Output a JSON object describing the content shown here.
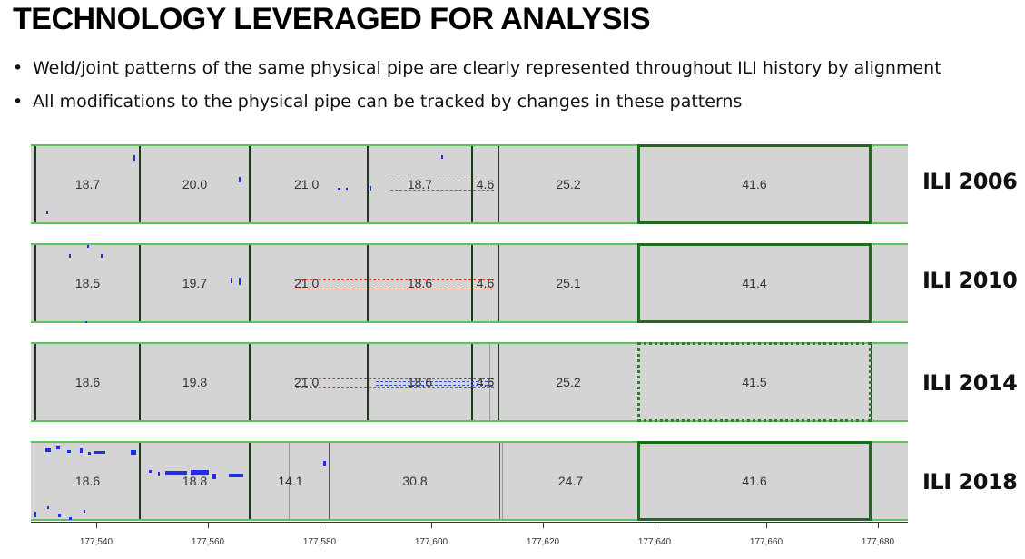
{
  "title": "TECHNOLOGY LEVERAGED FOR ANALYSIS",
  "bullets": [
    "Weld/joint patterns of the same physical pipe are clearly represented throughout ILI history by alignment",
    "All modifications to the physical pipe can be tracked by changes in these patterns"
  ],
  "tracks": [
    {
      "year": "ILI 2006",
      "joints": [
        "18.7",
        "20.0",
        "21.0",
        "18.7",
        "4.6",
        "25.2",
        "41.6"
      ]
    },
    {
      "year": "ILI 2010",
      "joints": [
        "18.5",
        "19.7",
        "21.0",
        "18.6",
        "4.6",
        "25.1",
        "41.4"
      ]
    },
    {
      "year": "ILI 2014",
      "joints": [
        "18.6",
        "19.8",
        "21.0",
        "18.6",
        "4.6",
        "25.2",
        "41.5"
      ]
    },
    {
      "year": "ILI 2018",
      "joints": [
        "18.6",
        "18.8",
        "14.1",
        "30.8",
        "24.7",
        "41.6"
      ]
    }
  ],
  "axis": {
    "ticks": [
      "177,540",
      "177,560",
      "177,580",
      "177,600",
      "177,620",
      "177,640",
      "177,660",
      "177,680"
    ]
  },
  "colors": {
    "track_bg": "#d4d4d4",
    "track_border": "#5cc45c",
    "weld_line": "#1a3a1a",
    "highlight_box": "#1e6b1e",
    "feature_marks": "#2030e0",
    "dashed_red": "#e04020"
  }
}
